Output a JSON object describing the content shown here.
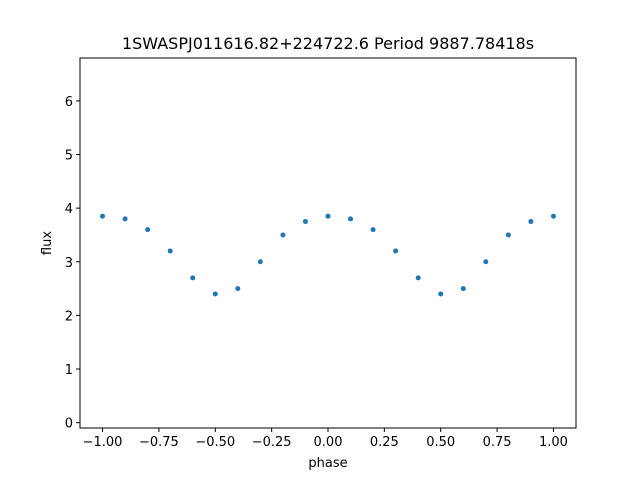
{
  "chart_data": {
    "type": "scatter",
    "title": "1SWASPJ011616.82+224722.6 Period 9887.78418s",
    "xlabel": "phase",
    "ylabel": "flux",
    "xlim": [
      -1.1,
      1.1
    ],
    "ylim": [
      -0.1,
      6.8
    ],
    "xticks": [
      -1.0,
      -0.75,
      -0.5,
      -0.25,
      0.0,
      0.25,
      0.5,
      0.75,
      1.0
    ],
    "xtick_labels": [
      "−1.00",
      "−0.75",
      "−0.50",
      "−0.25",
      "0.00",
      "0.25",
      "0.50",
      "0.75",
      "1.00"
    ],
    "yticks": [
      0,
      1,
      2,
      3,
      4,
      5,
      6
    ],
    "ytick_labels": [
      "0",
      "1",
      "2",
      "3",
      "4",
      "5",
      "6"
    ],
    "grid": false,
    "legend": "none",
    "point_color": "#1f77b4",
    "series": [
      {
        "x": [
          -1.0,
          -0.9,
          -0.8,
          -0.7,
          -0.6,
          -0.5,
          -0.4,
          -0.3,
          -0.2,
          -0.1,
          0.0,
          0.1,
          0.2,
          0.3,
          0.4,
          0.5,
          0.6,
          0.7,
          0.8,
          0.9,
          1.0
        ],
        "y": [
          3.85,
          3.8,
          3.6,
          3.2,
          2.7,
          2.4,
          2.5,
          3.0,
          3.5,
          3.75,
          3.85,
          3.8,
          3.6,
          3.2,
          2.7,
          2.4,
          2.5,
          3.0,
          3.5,
          3.75,
          3.85
        ]
      }
    ]
  }
}
